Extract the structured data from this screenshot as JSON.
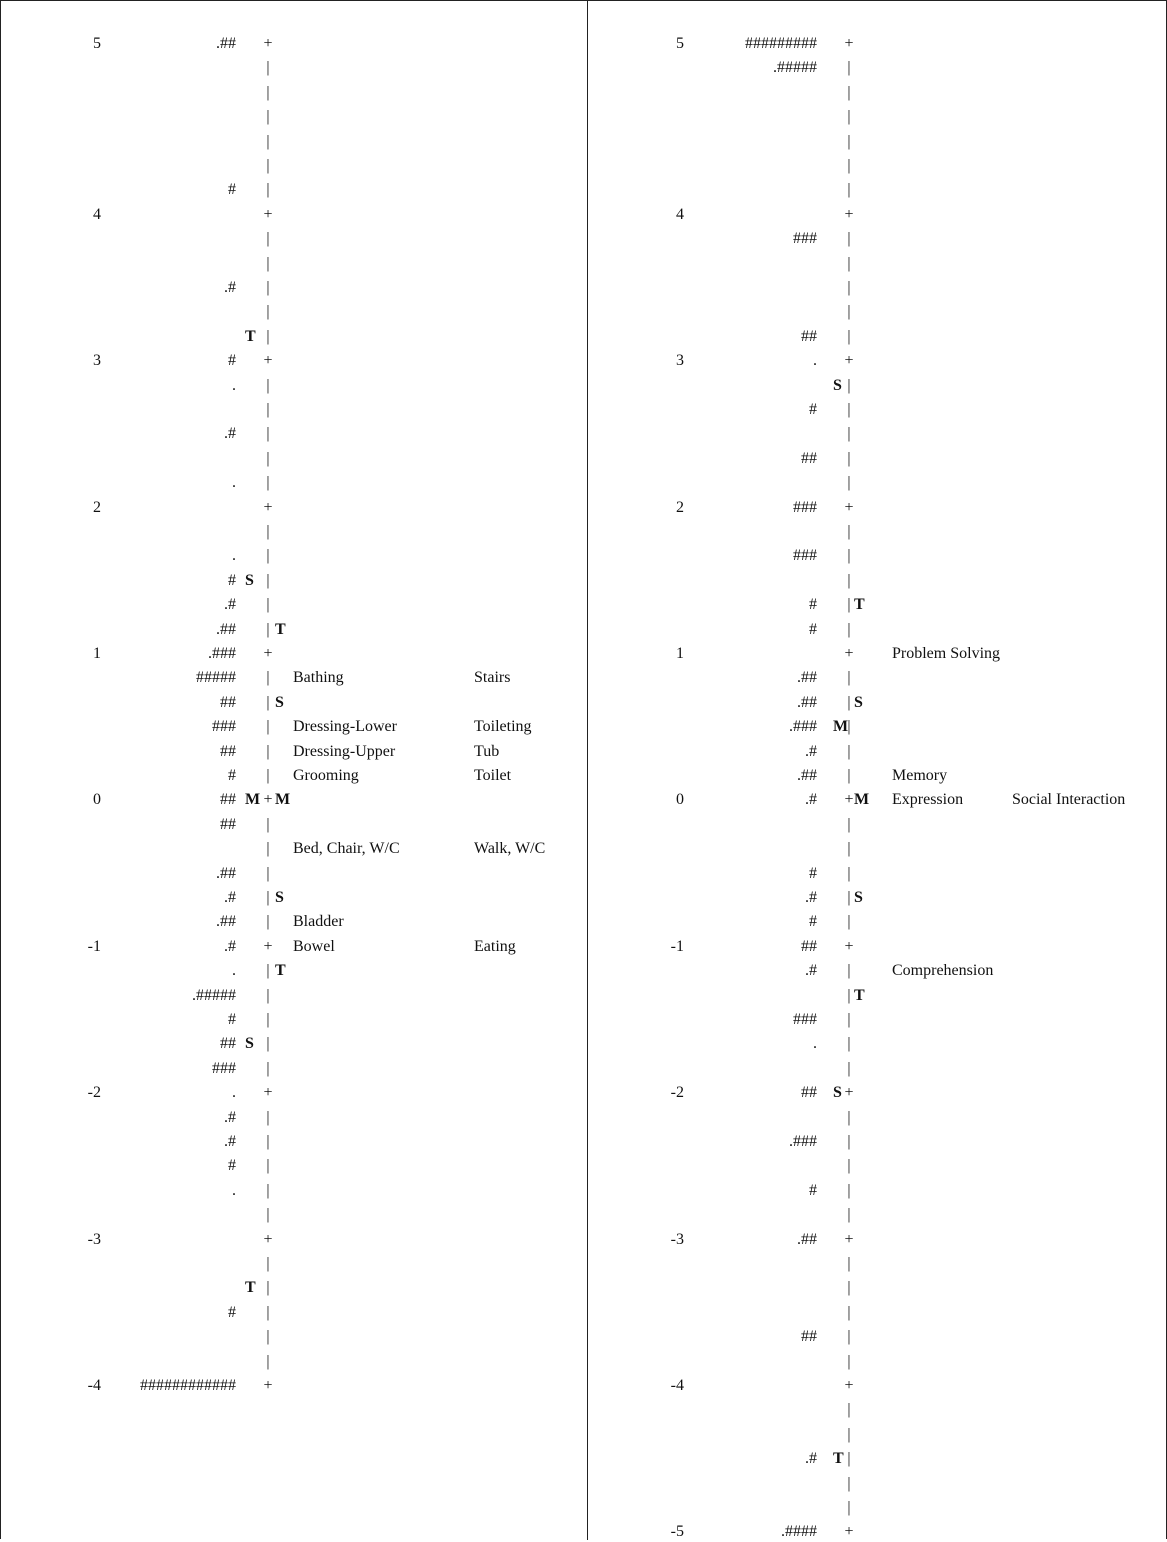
{
  "panels": [
    {
      "id": "left",
      "rows": [
        {
          "logit": "5",
          "persons": ".##",
          "marker": "",
          "tick": "+",
          "items": []
        },
        {
          "persons": "",
          "marker": "",
          "tick": "|",
          "items": []
        },
        {
          "persons": "",
          "marker": "",
          "tick": "|",
          "items": []
        },
        {
          "persons": "",
          "marker": "",
          "tick": "|",
          "items": []
        },
        {
          "persons": "",
          "marker": "",
          "tick": "|",
          "items": []
        },
        {
          "persons": "",
          "marker": "",
          "tick": "|",
          "items": []
        },
        {
          "persons": "#",
          "marker": "",
          "tick": "|",
          "items": []
        },
        {
          "logit": "4",
          "persons": "",
          "marker": "",
          "tick": "+",
          "items": []
        },
        {
          "persons": "",
          "marker": "",
          "tick": "|",
          "items": []
        },
        {
          "persons": "",
          "marker": "",
          "tick": "|",
          "items": []
        },
        {
          "persons": ".#",
          "marker": "",
          "tick": "|",
          "items": []
        },
        {
          "persons": "",
          "marker": "",
          "tick": "|",
          "items": []
        },
        {
          "persons": "",
          "marker": "T",
          "tick": "|",
          "items": []
        },
        {
          "logit": "3",
          "persons": "#",
          "marker": "",
          "tick": "+",
          "items": []
        },
        {
          "persons": ".",
          "marker": "",
          "tick": "|",
          "items": []
        },
        {
          "persons": "",
          "marker": "",
          "tick": "|",
          "items": []
        },
        {
          "persons": ".#",
          "marker": "",
          "tick": "|",
          "items": []
        },
        {
          "persons": "",
          "marker": "",
          "tick": "|",
          "items": []
        },
        {
          "persons": ".",
          "marker": "",
          "tick": "|",
          "items": []
        },
        {
          "logit": "2",
          "persons": "",
          "marker": "",
          "tick": "+",
          "items": []
        },
        {
          "persons": "",
          "marker": "",
          "tick": "|",
          "items": []
        },
        {
          "persons": ".",
          "marker": "",
          "tick": "|",
          "items": []
        },
        {
          "persons": "#",
          "marker": "S",
          "tick": "|",
          "items": []
        },
        {
          "persons": ".#",
          "marker": "",
          "tick": "|",
          "items": []
        },
        {
          "persons": ".##",
          "marker": "",
          "tick": "|",
          "right_marker": "T",
          "items": []
        },
        {
          "logit": "1",
          "persons": ".###",
          "marker": "",
          "tick": "+",
          "items": []
        },
        {
          "persons": "#####",
          "marker": "",
          "tick": "|",
          "items": [
            "Bathing",
            "Stairs"
          ]
        },
        {
          "persons": "##",
          "marker": "",
          "tick": "|",
          "right_marker": "S",
          "items": []
        },
        {
          "persons": "###",
          "marker": "",
          "tick": "|",
          "items": [
            "Dressing-Lower",
            "Toileting"
          ]
        },
        {
          "persons": "##",
          "marker": "",
          "tick": "|",
          "items": [
            "Dressing-Upper",
            "Tub"
          ]
        },
        {
          "persons": "#",
          "marker": "",
          "tick": "|",
          "items": [
            "Grooming",
            "Toilet"
          ]
        },
        {
          "logit": "0",
          "persons": "##",
          "marker": "M",
          "tick": "+",
          "right_marker": "M",
          "items": []
        },
        {
          "persons": "##",
          "marker": "",
          "tick": "|",
          "items": []
        },
        {
          "persons": "",
          "marker": "",
          "tick": "|",
          "items": [
            "Bed, Chair, W/C",
            "Walk, W/C"
          ]
        },
        {
          "persons": ".##",
          "marker": "",
          "tick": "|",
          "items": []
        },
        {
          "persons": ".#",
          "marker": "",
          "tick": "|",
          "right_marker": "S",
          "items": []
        },
        {
          "persons": ".##",
          "marker": "",
          "tick": "|",
          "items": [
            "Bladder"
          ]
        },
        {
          "logit": "-1",
          "persons": ".#",
          "marker": "",
          "tick": "+",
          "items": [
            "Bowel",
            "Eating"
          ]
        },
        {
          "persons": ".",
          "marker": "",
          "tick": "|",
          "right_marker": "T",
          "items": []
        },
        {
          "persons": ".#####",
          "marker": "",
          "tick": "|",
          "items": []
        },
        {
          "persons": "#",
          "marker": "",
          "tick": "|",
          "items": []
        },
        {
          "persons": "##",
          "marker": "S",
          "tick": "|",
          "items": []
        },
        {
          "persons": "###",
          "marker": "",
          "tick": "|",
          "items": []
        },
        {
          "logit": "-2",
          "persons": ".",
          "marker": "",
          "tick": "+",
          "items": []
        },
        {
          "persons": ".#",
          "marker": "",
          "tick": "|",
          "items": []
        },
        {
          "persons": ".#",
          "marker": "",
          "tick": "|",
          "items": []
        },
        {
          "persons": "#",
          "marker": "",
          "tick": "|",
          "items": []
        },
        {
          "persons": ".",
          "marker": "",
          "tick": "|",
          "items": []
        },
        {
          "persons": "",
          "marker": "",
          "tick": "|",
          "items": []
        },
        {
          "logit": "-3",
          "persons": "",
          "marker": "",
          "tick": "+",
          "items": []
        },
        {
          "persons": "",
          "marker": "",
          "tick": "|",
          "items": []
        },
        {
          "persons": "",
          "marker": "T",
          "tick": "|",
          "items": []
        },
        {
          "persons": "#",
          "marker": "",
          "tick": "|",
          "items": []
        },
        {
          "persons": "",
          "marker": "",
          "tick": "|",
          "items": []
        },
        {
          "persons": "",
          "marker": "",
          "tick": "|",
          "items": []
        },
        {
          "logit": "-4",
          "persons": "############",
          "marker": "",
          "tick": "+",
          "items": []
        }
      ]
    },
    {
      "id": "right",
      "rows": [
        {
          "logit": "5",
          "persons": "#########",
          "marker": "",
          "tick": "+",
          "items": []
        },
        {
          "persons": ".#####",
          "marker": "",
          "tick": "|",
          "items": []
        },
        {
          "persons": "",
          "marker": "",
          "tick": "|",
          "items": []
        },
        {
          "persons": "",
          "marker": "",
          "tick": "|",
          "items": []
        },
        {
          "persons": "",
          "marker": "",
          "tick": "|",
          "items": []
        },
        {
          "persons": "",
          "marker": "",
          "tick": "|",
          "items": []
        },
        {
          "persons": "",
          "marker": "",
          "tick": "|",
          "items": []
        },
        {
          "logit": "4",
          "persons": "",
          "marker": "",
          "tick": "+",
          "items": []
        },
        {
          "persons": "###",
          "marker": "",
          "tick": "|",
          "items": []
        },
        {
          "persons": "",
          "marker": "",
          "tick": "|",
          "items": []
        },
        {
          "persons": "",
          "marker": "",
          "tick": "|",
          "items": []
        },
        {
          "persons": "",
          "marker": "",
          "tick": "|",
          "items": []
        },
        {
          "persons": "##",
          "marker": "",
          "tick": "|",
          "items": []
        },
        {
          "logit": "3",
          "persons": ".",
          "marker": "",
          "tick": "+",
          "items": []
        },
        {
          "persons": "",
          "marker": "S",
          "tick": "|",
          "items": []
        },
        {
          "persons": "#",
          "marker": "",
          "tick": "|",
          "items": []
        },
        {
          "persons": "",
          "marker": "",
          "tick": "|",
          "items": []
        },
        {
          "persons": "##",
          "marker": "",
          "tick": "|",
          "items": []
        },
        {
          "persons": "",
          "marker": "",
          "tick": "|",
          "items": []
        },
        {
          "logit": "2",
          "persons": "###",
          "marker": "",
          "tick": "+",
          "items": []
        },
        {
          "persons": "",
          "marker": "",
          "tick": "|",
          "items": []
        },
        {
          "persons": "###",
          "marker": "",
          "tick": "|",
          "items": []
        },
        {
          "persons": "",
          "marker": "",
          "tick": "|",
          "items": []
        },
        {
          "persons": "#",
          "marker": "",
          "tick": "|",
          "right_marker": "T",
          "items": []
        },
        {
          "persons": "#",
          "marker": "",
          "tick": "|",
          "items": []
        },
        {
          "logit": "1",
          "persons": "",
          "marker": "",
          "tick": "+",
          "items": [
            "Problem Solving"
          ]
        },
        {
          "persons": ".##",
          "marker": "",
          "tick": "|",
          "items": []
        },
        {
          "persons": ".##",
          "marker": "",
          "tick": "|",
          "right_marker": "S",
          "items": []
        },
        {
          "persons": ".###",
          "marker": "M",
          "tick": "|",
          "items": []
        },
        {
          "persons": ".#",
          "marker": "",
          "tick": "|",
          "items": []
        },
        {
          "persons": ".##",
          "marker": "",
          "tick": "|",
          "items": [
            "Memory"
          ]
        },
        {
          "logit": "0",
          "persons": ".#",
          "marker": "",
          "tick": "+",
          "right_marker": "M",
          "items": [
            "Expression",
            "Social Interaction"
          ]
        },
        {
          "persons": "",
          "marker": "",
          "tick": "|",
          "items": []
        },
        {
          "persons": "",
          "marker": "",
          "tick": "|",
          "items": []
        },
        {
          "persons": "#",
          "marker": "",
          "tick": "|",
          "items": []
        },
        {
          "persons": ".#",
          "marker": "",
          "tick": "|",
          "right_marker": "S",
          "items": []
        },
        {
          "persons": "#",
          "marker": "",
          "tick": "|",
          "items": []
        },
        {
          "logit": "-1",
          "persons": "##",
          "marker": "",
          "tick": "+",
          "items": []
        },
        {
          "persons": ".#",
          "marker": "",
          "tick": "|",
          "items": [
            "Comprehension"
          ]
        },
        {
          "persons": "",
          "marker": "",
          "tick": "|",
          "right_marker": "T",
          "items": []
        },
        {
          "persons": "###",
          "marker": "",
          "tick": "|",
          "items": []
        },
        {
          "persons": ".",
          "marker": "",
          "tick": "|",
          "items": []
        },
        {
          "persons": "",
          "marker": "",
          "tick": "|",
          "items": []
        },
        {
          "logit": "-2",
          "persons": "##",
          "marker": "S",
          "tick": "+",
          "items": []
        },
        {
          "persons": "",
          "marker": "",
          "tick": "|",
          "items": []
        },
        {
          "persons": ".###",
          "marker": "",
          "tick": "|",
          "items": []
        },
        {
          "persons": "",
          "marker": "",
          "tick": "|",
          "items": []
        },
        {
          "persons": "#",
          "marker": "",
          "tick": "|",
          "items": []
        },
        {
          "persons": "",
          "marker": "",
          "tick": "|",
          "items": []
        },
        {
          "logit": "-3",
          "persons": ".##",
          "marker": "",
          "tick": "+",
          "items": []
        },
        {
          "persons": "",
          "marker": "",
          "tick": "|",
          "items": []
        },
        {
          "persons": "",
          "marker": "",
          "tick": "|",
          "items": []
        },
        {
          "persons": "",
          "marker": "",
          "tick": "|",
          "items": []
        },
        {
          "persons": "##",
          "marker": "",
          "tick": "|",
          "items": []
        },
        {
          "persons": "",
          "marker": "",
          "tick": "|",
          "items": []
        },
        {
          "logit": "-4",
          "persons": "",
          "marker": "",
          "tick": "+",
          "items": []
        },
        {
          "persons": "",
          "marker": "",
          "tick": "|",
          "items": []
        },
        {
          "persons": "",
          "marker": "",
          "tick": "|",
          "items": []
        },
        {
          "persons": ".#",
          "marker": "T",
          "tick": "|",
          "items": []
        },
        {
          "persons": "",
          "marker": "",
          "tick": "|",
          "items": []
        },
        {
          "persons": "",
          "marker": "",
          "tick": "|",
          "items": []
        },
        {
          "logit": "-5",
          "persons": ".####",
          "marker": "",
          "tick": "+",
          "items": []
        }
      ]
    }
  ]
}
